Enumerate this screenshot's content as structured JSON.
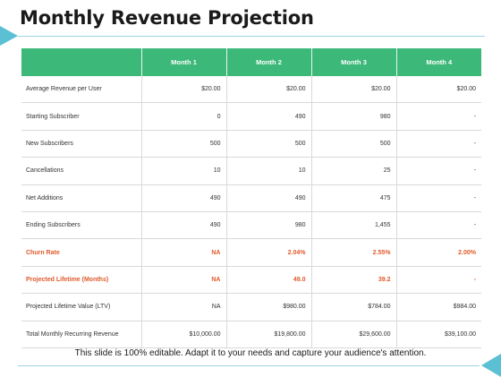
{
  "title": "Monthly Revenue Projection",
  "table": {
    "headers": [
      "",
      "Month 1",
      "Month 2",
      "Month 3",
      "Month 4"
    ],
    "rows": [
      {
        "cells": [
          "Average Revenue per User",
          "$20.00",
          "$20.00",
          "$20.00",
          "$20.00"
        ],
        "highlight": false
      },
      {
        "cells": [
          "Starting Subscriber",
          "0",
          "490",
          "980",
          "-"
        ],
        "highlight": false
      },
      {
        "cells": [
          "New Subscribers",
          "500",
          "500",
          "500",
          "-"
        ],
        "highlight": false
      },
      {
        "cells": [
          "Cancellations",
          "10",
          "10",
          "25",
          "-"
        ],
        "highlight": false
      },
      {
        "cells": [
          "Net Additions",
          "490",
          "490",
          "475",
          "-"
        ],
        "highlight": false
      },
      {
        "cells": [
          "Ending Subscribers",
          "490",
          "980",
          "1,455",
          "-"
        ],
        "highlight": false
      },
      {
        "cells": [
          "Churn Rate",
          "NA",
          "2.04%",
          "2.55%",
          "2.00%"
        ],
        "highlight": true
      },
      {
        "cells": [
          "Projected Lifetime (Months)",
          "NA",
          "49.0",
          "39.2",
          "-"
        ],
        "highlight": true
      },
      {
        "cells": [
          "Projected Lifetime Value (LTV)",
          "NA",
          "$980.00",
          "$784.00",
          "$984.00"
        ],
        "highlight": false
      },
      {
        "cells": [
          "Total Monthly Recurring Revenue",
          "$10,000.00",
          "$19,800.00",
          "$29,600.00",
          "$39,100.00"
        ],
        "highlight": false
      }
    ]
  },
  "footer": "This slide is 100% editable. Adapt it to your needs and capture your audience's attention.",
  "colors": {
    "header_bg": "#3cb878",
    "accent": "#5bc0d3",
    "highlight_text": "#e05a2b"
  }
}
